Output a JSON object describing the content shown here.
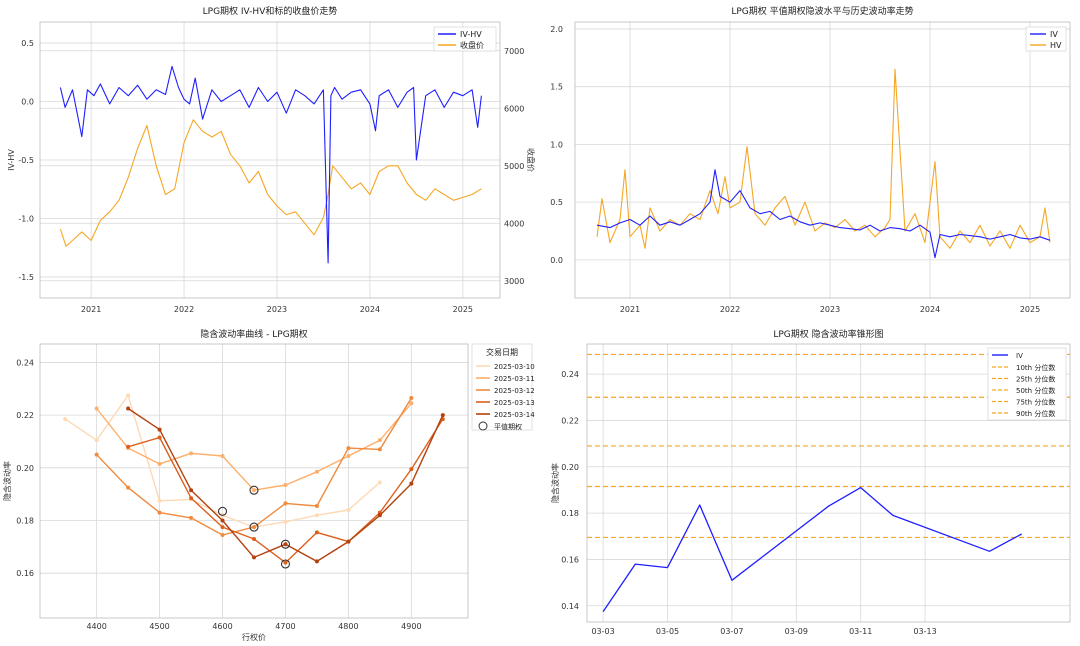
{
  "colors": {
    "iv": "#1f1fff",
    "hv": "#f6a623",
    "left_axis_blue": "#1f77b4",
    "right_axis_red": "#d62728",
    "smile": [
      "#fdd9b5",
      "#fdae6b",
      "#f08a3e",
      "#dc5f1c",
      "#b4410e"
    ]
  },
  "chart_data": [
    {
      "type": "line",
      "title": "LPG期权 IV-HV和标的收盘价走势",
      "ylabel": "IV-HV",
      "y2label": "收盘价",
      "x_ticks": [
        "2021",
        "2022",
        "2023",
        "2024",
        "2025"
      ],
      "x_range": [
        2020.45,
        2025.4
      ],
      "ylim": [
        -1.68,
        0.68
      ],
      "y2lim": [
        2700,
        7500
      ],
      "y_ticks": [
        "0.5",
        "0.0",
        "-0.5",
        "-1.0",
        "-1.5"
      ],
      "y2_ticks": [
        "7000",
        "6000",
        "5000",
        "4000",
        "3000"
      ],
      "series": [
        {
          "name": "IV-HV",
          "axis": "left",
          "x": [
            2020.67,
            2020.72,
            2020.8,
            2020.9,
            2020.96,
            2021.03,
            2021.1,
            2021.2,
            2021.3,
            2021.4,
            2021.5,
            2021.6,
            2021.7,
            2021.8,
            2021.87,
            2021.94,
            2022.0,
            2022.06,
            2022.12,
            2022.2,
            2022.3,
            2022.4,
            2022.5,
            2022.6,
            2022.7,
            2022.8,
            2022.9,
            2023.0,
            2023.1,
            2023.2,
            2023.3,
            2023.4,
            2023.5,
            2023.55,
            2023.58,
            2023.62,
            2023.7,
            2023.8,
            2023.9,
            2024.0,
            2024.06,
            2024.1,
            2024.2,
            2024.3,
            2024.4,
            2024.47,
            2024.5,
            2024.6,
            2024.7,
            2024.8,
            2024.9,
            2025.0,
            2025.1,
            2025.16,
            2025.2
          ],
          "values": [
            0.12,
            -0.05,
            0.1,
            -0.3,
            0.1,
            0.05,
            0.15,
            -0.02,
            0.12,
            0.05,
            0.14,
            0.02,
            0.1,
            0.06,
            0.3,
            0.12,
            0.02,
            -0.02,
            0.2,
            -0.15,
            0.1,
            0.0,
            0.05,
            0.1,
            -0.05,
            0.12,
            0.0,
            0.08,
            -0.1,
            0.1,
            0.05,
            -0.02,
            0.1,
            -1.38,
            0.05,
            0.12,
            0.02,
            0.08,
            0.1,
            -0.02,
            -0.25,
            0.05,
            0.1,
            -0.05,
            0.08,
            0.12,
            -0.5,
            0.05,
            0.1,
            -0.05,
            0.08,
            0.05,
            0.1,
            -0.22,
            0.05
          ]
        },
        {
          "name": "收盘价",
          "axis": "right",
          "x": [
            2020.67,
            2020.73,
            2020.8,
            2020.9,
            2021.0,
            2021.1,
            2021.2,
            2021.3,
            2021.4,
            2021.5,
            2021.6,
            2021.7,
            2021.8,
            2021.9,
            2022.0,
            2022.1,
            2022.2,
            2022.3,
            2022.4,
            2022.5,
            2022.6,
            2022.7,
            2022.8,
            2022.9,
            2023.0,
            2023.1,
            2023.2,
            2023.3,
            2023.4,
            2023.5,
            2023.55,
            2023.6,
            2023.7,
            2023.8,
            2023.9,
            2024.0,
            2024.1,
            2024.2,
            2024.3,
            2024.4,
            2024.5,
            2024.6,
            2024.7,
            2024.8,
            2024.9,
            2025.0,
            2025.1,
            2025.2
          ],
          "values": [
            3900,
            3600,
            3700,
            3850,
            3700,
            4050,
            4200,
            4400,
            4800,
            5300,
            5700,
            5000,
            4500,
            4600,
            5400,
            5800,
            5600,
            5500,
            5600,
            5200,
            5000,
            4700,
            4900,
            4500,
            4300,
            4150,
            4200,
            4000,
            3800,
            4100,
            4500,
            5000,
            4800,
            4600,
            4700,
            4500,
            4900,
            5000,
            5000,
            4700,
            4500,
            4400,
            4600,
            4500,
            4400,
            4450,
            4500,
            4600
          ]
        }
      ],
      "legend": "top-right"
    },
    {
      "type": "line",
      "title": "LPG期权 平值期权隐波水平与历史波动率走势",
      "x_ticks": [
        "2021",
        "2022",
        "2023",
        "2024",
        "2025"
      ],
      "x_range": [
        2020.45,
        2025.4
      ],
      "ylim": [
        -0.33,
        2.06
      ],
      "y_ticks": [
        "2.0",
        "1.5",
        "1.0",
        "0.5",
        "0.0"
      ],
      "series": [
        {
          "name": "IV",
          "x": [
            2020.67,
            2020.8,
            2020.9,
            2021.0,
            2021.1,
            2021.2,
            2021.3,
            2021.4,
            2021.5,
            2021.6,
            2021.7,
            2021.8,
            2021.85,
            2021.9,
            2022.0,
            2022.1,
            2022.2,
            2022.3,
            2022.4,
            2022.5,
            2022.6,
            2022.7,
            2022.8,
            2022.9,
            2023.0,
            2023.1,
            2023.2,
            2023.3,
            2023.4,
            2023.5,
            2023.6,
            2023.7,
            2023.8,
            2023.9,
            2024.0,
            2024.05,
            2024.1,
            2024.2,
            2024.3,
            2024.4,
            2024.5,
            2024.6,
            2024.7,
            2024.8,
            2024.9,
            2025.0,
            2025.1,
            2025.2
          ],
          "values": [
            0.3,
            0.28,
            0.32,
            0.35,
            0.3,
            0.38,
            0.3,
            0.33,
            0.3,
            0.35,
            0.4,
            0.5,
            0.78,
            0.55,
            0.5,
            0.6,
            0.45,
            0.4,
            0.42,
            0.35,
            0.38,
            0.33,
            0.3,
            0.32,
            0.3,
            0.28,
            0.27,
            0.26,
            0.3,
            0.25,
            0.28,
            0.27,
            0.25,
            0.3,
            0.24,
            0.02,
            0.22,
            0.2,
            0.22,
            0.21,
            0.2,
            0.18,
            0.2,
            0.22,
            0.19,
            0.18,
            0.2,
            0.17
          ]
        },
        {
          "name": "HV",
          "x": [
            2020.67,
            2020.72,
            2020.8,
            2020.9,
            2020.95,
            2021.0,
            2021.1,
            2021.15,
            2021.2,
            2021.3,
            2021.4,
            2021.5,
            2021.6,
            2021.7,
            2021.8,
            2021.88,
            2021.95,
            2022.0,
            2022.1,
            2022.17,
            2022.25,
            2022.35,
            2022.45,
            2022.55,
            2022.65,
            2022.75,
            2022.85,
            2022.95,
            2023.05,
            2023.15,
            2023.25,
            2023.35,
            2023.45,
            2023.55,
            2023.6,
            2023.65,
            2023.75,
            2023.85,
            2023.95,
            2024.05,
            2024.1,
            2024.2,
            2024.3,
            2024.4,
            2024.5,
            2024.6,
            2024.7,
            2024.8,
            2024.9,
            2025.0,
            2025.1,
            2025.15,
            2025.2
          ],
          "values": [
            0.2,
            0.53,
            0.15,
            0.35,
            0.78,
            0.2,
            0.3,
            0.1,
            0.45,
            0.25,
            0.35,
            0.3,
            0.4,
            0.35,
            0.6,
            0.4,
            0.72,
            0.45,
            0.5,
            0.98,
            0.4,
            0.3,
            0.45,
            0.55,
            0.3,
            0.5,
            0.25,
            0.32,
            0.28,
            0.35,
            0.25,
            0.3,
            0.2,
            0.28,
            0.35,
            1.65,
            0.25,
            0.4,
            0.15,
            0.85,
            0.2,
            0.1,
            0.25,
            0.15,
            0.3,
            0.12,
            0.25,
            0.1,
            0.3,
            0.15,
            0.2,
            0.45,
            0.15
          ]
        }
      ],
      "legend": "top-right"
    },
    {
      "type": "line",
      "title": "隐含波动率曲线 - LPG期权",
      "xlabel": "行权价",
      "ylabel": "隐含波动率",
      "xlim": [
        4310,
        4990
      ],
      "ylim": [
        0.143,
        0.247
      ],
      "x_ticks": [
        "4400",
        "4500",
        "4600",
        "4700",
        "4800",
        "4900"
      ],
      "y_ticks": [
        "0.24",
        "0.22",
        "0.20",
        "0.18",
        "0.16"
      ],
      "legend_title": "交易日期",
      "legend": "right-outside",
      "series": [
        {
          "name": "2025-03-10",
          "x": [
            4350,
            4400,
            4450,
            4500,
            4550,
            4600,
            4650,
            4700,
            4750,
            4800,
            4850
          ],
          "values": [
            0.2185,
            0.2105,
            0.2275,
            0.1875,
            0.188,
            0.182,
            0.1775,
            0.1795,
            0.182,
            0.184,
            0.1945
          ]
        },
        {
          "name": "2025-03-11",
          "x": [
            4400,
            4450,
            4500,
            4550,
            4600,
            4650,
            4700,
            4750,
            4800,
            4850,
            4900
          ],
          "values": [
            0.2225,
            0.2075,
            0.2015,
            0.2055,
            0.2045,
            0.1915,
            0.1935,
            0.1985,
            0.2045,
            0.2105,
            0.2245
          ]
        },
        {
          "name": "2025-03-12",
          "x": [
            4400,
            4450,
            4500,
            4550,
            4600,
            4650,
            4700,
            4750,
            4800,
            4850,
            4900
          ],
          "values": [
            0.205,
            0.1925,
            0.183,
            0.181,
            0.1745,
            0.1775,
            0.1865,
            0.1855,
            0.2075,
            0.207,
            0.2265
          ]
        },
        {
          "name": "2025-03-13",
          "x": [
            4450,
            4500,
            4550,
            4600,
            4650,
            4700,
            4750,
            4800,
            4850,
            4900,
            4950
          ],
          "values": [
            0.208,
            0.2115,
            0.1885,
            0.1775,
            0.173,
            0.164,
            0.1755,
            0.172,
            0.183,
            0.1995,
            0.2185
          ]
        },
        {
          "name": "2025-03-14",
          "x": [
            4450,
            4500,
            4550,
            4600,
            4650,
            4700,
            4750,
            4800,
            4850,
            4900,
            4950
          ],
          "values": [
            0.2225,
            0.2145,
            0.1915,
            0.18,
            0.166,
            0.171,
            0.1645,
            0.172,
            0.182,
            0.194,
            0.22
          ]
        }
      ],
      "atm_label": "平值期权",
      "atm_points": [
        {
          "x": 4600,
          "y": 0.1835
        },
        {
          "x": 4650,
          "y": 0.1915
        },
        {
          "x": 4650,
          "y": 0.1775
        },
        {
          "x": 4700,
          "y": 0.171
        },
        {
          "x": 4700,
          "y": 0.1635
        }
      ]
    },
    {
      "type": "line",
      "title": "LPG期权 隐含波动率锥形图",
      "ylabel": "隐含波动率",
      "ylim": [
        0.133,
        0.253
      ],
      "y_ticks": [
        "0.24",
        "0.22",
        "0.20",
        "0.18",
        "0.16",
        "0.14"
      ],
      "x_ticks": [
        "03-03",
        "03-05",
        "03-07",
        "03-09",
        "03-11",
        "03-13"
      ],
      "x": [
        "03-03",
        "03-04",
        "03-05",
        "03-06",
        "03-07",
        "03-10",
        "03-11",
        "03-12",
        "03-13",
        "03-14"
      ],
      "x_index": [
        0,
        1,
        2,
        3,
        4,
        7,
        8,
        9,
        12,
        13
      ],
      "x_index_range": [
        -0.5,
        14.5
      ],
      "tick_index": [
        0,
        2,
        4,
        6,
        8,
        10
      ],
      "series": [
        {
          "name": "IV",
          "values": [
            0.1375,
            0.158,
            0.1565,
            0.1835,
            0.151,
            0.183,
            0.191,
            0.179,
            0.1635,
            0.171
          ]
        }
      ],
      "percentiles": [
        {
          "name": "10th 分位数",
          "value": 0.1695
        },
        {
          "name": "25th 分位数",
          "value": 0.1915
        },
        {
          "name": "50th 分位数",
          "value": 0.209
        },
        {
          "name": "75th 分位数",
          "value": 0.23
        },
        {
          "name": "90th 分位数",
          "value": 0.2485
        }
      ],
      "legend": "top-right"
    }
  ]
}
